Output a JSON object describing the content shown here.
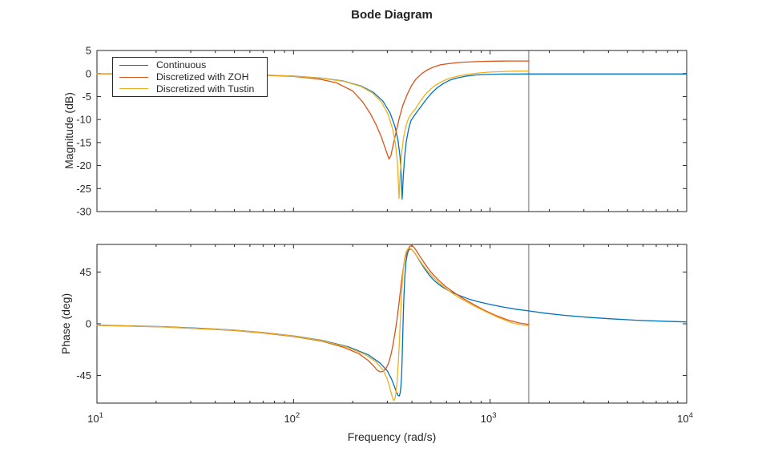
{
  "title": "Bode Diagram",
  "colors": {
    "axis": "#262626",
    "background": "#ffffff",
    "nyquist_line": "#a9a9a9",
    "continuous": "#0072BD",
    "zoh": "#D95319",
    "tustin": "#EDB120"
  },
  "legend": {
    "items": [
      {
        "label": "Continuous",
        "color": "#0072BD"
      },
      {
        "label": "Discretized with ZOH",
        "color": "#D95319"
      },
      {
        "label": "Discretized with Tustin",
        "color": "#EDB120"
      }
    ]
  },
  "axes": {
    "x": {
      "label": "Frequency (rad/s)",
      "scale": "log",
      "lim": [
        10,
        10000
      ],
      "tick_base": 10,
      "tick_exponents": [
        1,
        2,
        3,
        4
      ],
      "minor_multipliers": [
        2,
        3,
        4,
        5,
        6,
        7,
        8,
        9
      ]
    }
  },
  "chart_data": [
    {
      "type": "line",
      "title": "Bode Diagram",
      "xlabel": "Frequency (rad/s)",
      "ylabel": "Magnitude (dB)",
      "xscale": "log",
      "xlim": [
        10,
        10000
      ],
      "ylim": [
        -30,
        5
      ],
      "yticks": [
        5,
        0,
        -5,
        -10,
        -15,
        -20,
        -25,
        -30
      ],
      "grid": false,
      "legend_position": "top-left",
      "nyquist_line_rad_s": 1571,
      "series": [
        {
          "name": "Continuous",
          "color": "#0072BD",
          "points": [
            [
              10,
              -0.05
            ],
            [
              20,
              -0.08
            ],
            [
              40,
              -0.16
            ],
            [
              70,
              -0.32
            ],
            [
              100,
              -0.55
            ],
            [
              140,
              -1.0
            ],
            [
              180,
              -1.65
            ],
            [
              220,
              -2.7
            ],
            [
              255,
              -4.1
            ],
            [
              285,
              -6.0
            ],
            [
              310,
              -8.6
            ],
            [
              328,
              -11.5
            ],
            [
              340,
              -14.5
            ],
            [
              348,
              -18
            ],
            [
              353,
              -22
            ],
            [
              357,
              -27.3
            ],
            [
              361,
              -23
            ],
            [
              367,
              -18.3
            ],
            [
              375,
              -14.6
            ],
            [
              385,
              -12.0
            ],
            [
              396,
              -10.2
            ],
            [
              420,
              -8.6
            ],
            [
              443,
              -7.3
            ],
            [
              470,
              -5.8
            ],
            [
              500,
              -4.4
            ],
            [
              538,
              -3.1
            ],
            [
              577,
              -2.2
            ],
            [
              620,
              -1.5
            ],
            [
              674,
              -1.0
            ],
            [
              745,
              -0.6
            ],
            [
              836,
              -0.33
            ],
            [
              950,
              -0.2
            ],
            [
              1155,
              -0.12
            ],
            [
              1570,
              -0.1
            ],
            [
              3000,
              -0.1
            ],
            [
              10000,
              -0.1
            ]
          ]
        },
        {
          "name": "Discretized with ZOH",
          "color": "#D95319",
          "points": [
            [
              10,
              -0.06
            ],
            [
              40,
              -0.2
            ],
            [
              70,
              -0.38
            ],
            [
              100,
              -0.65
            ],
            [
              135,
              -1.2
            ],
            [
              165,
              -2.0
            ],
            [
              200,
              -3.8
            ],
            [
              225,
              -6.2
            ],
            [
              245,
              -8.6
            ],
            [
              262,
              -11
            ],
            [
              278,
              -13.5
            ],
            [
              293,
              -16.3
            ],
            [
              306,
              -18.6
            ],
            [
              313,
              -17.8
            ],
            [
              320,
              -15.8
            ],
            [
              332,
              -12.8
            ],
            [
              345,
              -9.7
            ],
            [
              360,
              -6.9
            ],
            [
              380,
              -4.4
            ],
            [
              400,
              -2.5
            ],
            [
              420,
              -1.2
            ],
            [
              450,
              0.0
            ],
            [
              480,
              0.8
            ],
            [
              515,
              1.4
            ],
            [
              560,
              1.9
            ],
            [
              616,
              2.15
            ],
            [
              700,
              2.4
            ],
            [
              800,
              2.55
            ],
            [
              950,
              2.65
            ],
            [
              1155,
              2.7
            ],
            [
              1400,
              2.72
            ],
            [
              1571,
              2.72
            ]
          ]
        },
        {
          "name": "Discretized with Tustin",
          "color": "#EDB120",
          "points": [
            [
              10,
              -0.05
            ],
            [
              40,
              -0.17
            ],
            [
              70,
              -0.33
            ],
            [
              100,
              -0.57
            ],
            [
              140,
              -1.05
            ],
            [
              180,
              -1.7
            ],
            [
              220,
              -2.8
            ],
            [
              252,
              -4.2
            ],
            [
              280,
              -6.2
            ],
            [
              303,
              -8.9
            ],
            [
              318,
              -11.8
            ],
            [
              330,
              -15.2
            ],
            [
              338,
              -19.5
            ],
            [
              342,
              -24.5
            ],
            [
              344,
              -27.2
            ],
            [
              348,
              -22.5
            ],
            [
              354,
              -17.8
            ],
            [
              362,
              -14.2
            ],
            [
              372,
              -11.6
            ],
            [
              384,
              -9.8
            ],
            [
              400,
              -8.6
            ],
            [
              417,
              -7.7
            ],
            [
              440,
              -6.1
            ],
            [
              465,
              -4.7
            ],
            [
              495,
              -3.5
            ],
            [
              525,
              -2.6
            ],
            [
              565,
              -1.8
            ],
            [
              616,
              -1.1
            ],
            [
              680,
              -0.6
            ],
            [
              750,
              -0.25
            ],
            [
              850,
              0.05
            ],
            [
              983,
              0.3
            ],
            [
              1200,
              0.45
            ],
            [
              1400,
              0.5
            ],
            [
              1571,
              0.55
            ]
          ]
        }
      ]
    },
    {
      "type": "line",
      "xlabel": "Frequency (rad/s)",
      "ylabel": "Phase (deg)",
      "xscale": "log",
      "xlim": [
        10,
        10000
      ],
      "ylim": [
        -69,
        69
      ],
      "yticks": [
        45,
        0,
        -45
      ],
      "grid": false,
      "nyquist_line_rad_s": 1571,
      "series": [
        {
          "name": "Continuous",
          "color": "#0072BD",
          "points": [
            [
              10,
              -1.2
            ],
            [
              15,
              -1.8
            ],
            [
              22,
              -2.6
            ],
            [
              33,
              -3.8
            ],
            [
              50,
              -5.5
            ],
            [
              70,
              -7.6
            ],
            [
              100,
              -10.5
            ],
            [
              140,
              -14.5
            ],
            [
              190,
              -20
            ],
            [
              240,
              -27
            ],
            [
              275,
              -34
            ],
            [
              300,
              -41
            ],
            [
              315,
              -48
            ],
            [
              326,
              -54.5
            ],
            [
              334,
              -59.5
            ],
            [
              340,
              -62.3
            ],
            [
              345,
              -62.8
            ],
            [
              349,
              -60
            ],
            [
              352,
              -54
            ],
            [
              355,
              -44
            ],
            [
              357,
              -30
            ],
            [
              359,
              -14
            ],
            [
              361,
              2
            ],
            [
              364,
              22
            ],
            [
              368,
              41
            ],
            [
              373,
              53.5
            ],
            [
              379,
              60.5
            ],
            [
              386,
              64.3
            ],
            [
              394,
              65.2
            ],
            [
              403,
              64
            ],
            [
              414,
              61.5
            ],
            [
              428,
              57.5
            ],
            [
              446,
              52.5
            ],
            [
              468,
              47
            ],
            [
              495,
              41.5
            ],
            [
              520,
              37.5
            ],
            [
              550,
              34
            ],
            [
              590,
              30.5
            ],
            [
              640,
              27.3
            ],
            [
              700,
              24.5
            ],
            [
              780,
              21.5
            ],
            [
              880,
              19
            ],
            [
              1000,
              16.8
            ],
            [
              1150,
              14.7
            ],
            [
              1350,
              12.7
            ],
            [
              1570,
              11.2
            ],
            [
              1900,
              9.2
            ],
            [
              2400,
              7.3
            ],
            [
              3100,
              5.7
            ],
            [
              4100,
              4.3
            ],
            [
              5600,
              3.1
            ],
            [
              7600,
              2.2
            ],
            [
              10000,
              1.6
            ]
          ]
        },
        {
          "name": "Discretized with ZOH",
          "color": "#D95319",
          "points": [
            [
              10,
              -1.3
            ],
            [
              22,
              -2.8
            ],
            [
              50,
              -5.8
            ],
            [
              70,
              -8.0
            ],
            [
              100,
              -11
            ],
            [
              140,
              -15.2
            ],
            [
              180,
              -20.5
            ],
            [
              215,
              -26
            ],
            [
              240,
              -32
            ],
            [
              255,
              -36.5
            ],
            [
              265,
              -40
            ],
            [
              275,
              -41.8
            ],
            [
              285,
              -41.5
            ],
            [
              295,
              -39
            ],
            [
              305,
              -34
            ],
            [
              313,
              -27
            ],
            [
              320,
              -19
            ],
            [
              328,
              -8
            ],
            [
              336,
              4
            ],
            [
              344,
              18
            ],
            [
              352,
              33
            ],
            [
              360,
              46
            ],
            [
              369,
              56.5
            ],
            [
              379,
              63.5
            ],
            [
              390,
              67.3
            ],
            [
              400,
              68
            ],
            [
              410,
              66.5
            ],
            [
              422,
              63.5
            ],
            [
              438,
              59
            ],
            [
              458,
              54
            ],
            [
              482,
              48.5
            ],
            [
              512,
              43
            ],
            [
              550,
              37.5
            ],
            [
              598,
              32
            ],
            [
              658,
              27
            ],
            [
              730,
              22
            ],
            [
              820,
              17
            ],
            [
              930,
              12
            ],
            [
              1060,
              7.5
            ],
            [
              1220,
              3.5
            ],
            [
              1400,
              0.8
            ],
            [
              1571,
              -0.6
            ]
          ]
        },
        {
          "name": "Discretized with Tustin",
          "color": "#EDB120",
          "points": [
            [
              10,
              -1.2
            ],
            [
              22,
              -2.7
            ],
            [
              50,
              -5.6
            ],
            [
              70,
              -7.7
            ],
            [
              100,
              -10.7
            ],
            [
              140,
              -14.8
            ],
            [
              185,
              -20
            ],
            [
              230,
              -26.5
            ],
            [
              262,
              -33
            ],
            [
              285,
              -40
            ],
            [
              298,
              -47
            ],
            [
              306,
              -53
            ],
            [
              312,
              -58.5
            ],
            [
              317,
              -63
            ],
            [
              321,
              -66
            ],
            [
              324,
              -66.8
            ],
            [
              328,
              -65
            ],
            [
              332,
              -60
            ],
            [
              336,
              -51
            ],
            [
              340,
              -38
            ],
            [
              344,
              -22
            ],
            [
              348,
              -4
            ],
            [
              352,
              14
            ],
            [
              356,
              31
            ],
            [
              361,
              46
            ],
            [
              367,
              56.5
            ],
            [
              374,
              62.5
            ],
            [
              382,
              65.3
            ],
            [
              391,
              65.8
            ],
            [
              400,
              64.5
            ],
            [
              412,
              62
            ],
            [
              427,
              58
            ],
            [
              447,
              53
            ],
            [
              472,
              47.5
            ],
            [
              503,
              42
            ],
            [
              542,
              36.5
            ],
            [
              592,
              31
            ],
            [
              655,
              25.5
            ],
            [
              733,
              20.5
            ],
            [
              830,
              15.5
            ],
            [
              950,
              10.5
            ],
            [
              1100,
              5.5
            ],
            [
              1280,
              1
            ],
            [
              1430,
              -1
            ],
            [
              1571,
              -1.5
            ]
          ]
        }
      ]
    }
  ]
}
